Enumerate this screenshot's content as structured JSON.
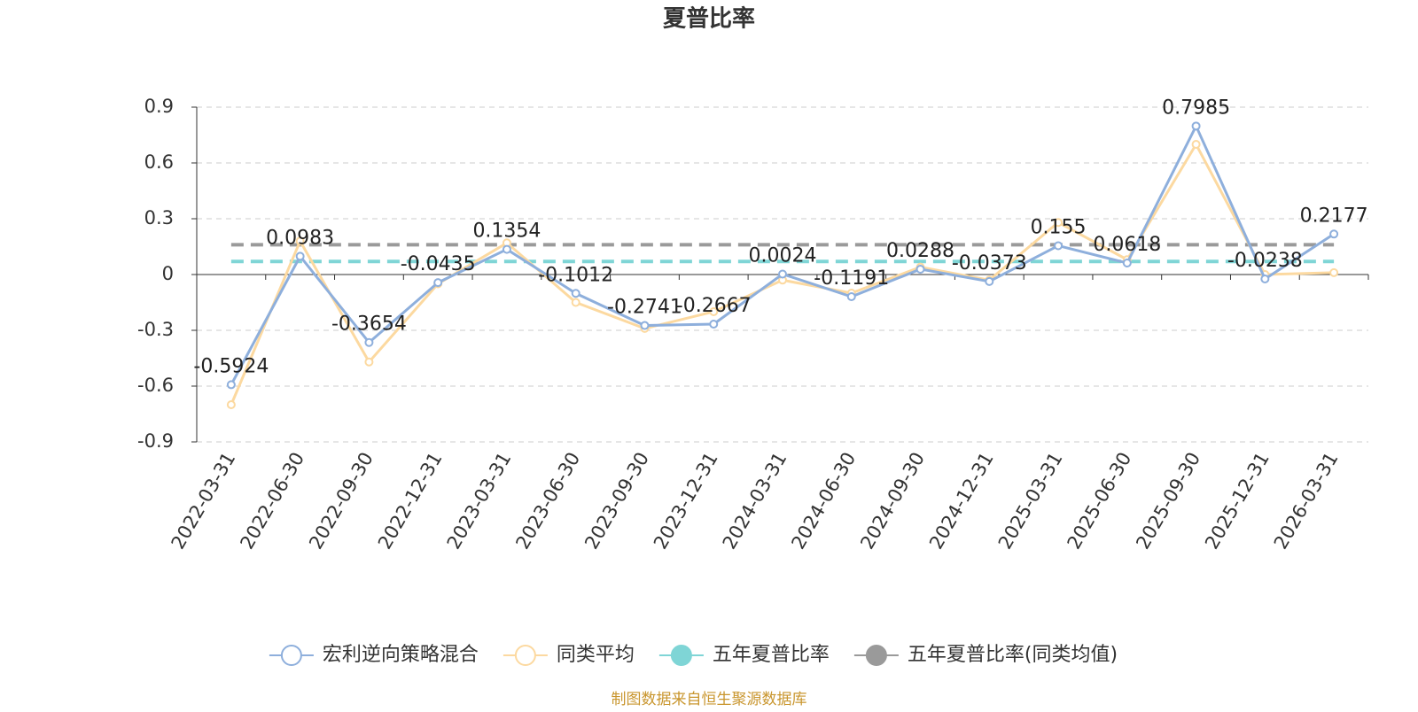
{
  "chart_data": {
    "type": "line",
    "title": "夏普比率",
    "footer": "制图数据来自恒生聚源数据库",
    "categories": [
      "2022-03-31",
      "2022-06-30",
      "2022-09-30",
      "2022-12-31",
      "2023-03-31",
      "2023-06-30",
      "2023-09-30",
      "2023-12-31",
      "2024-03-31",
      "2024-06-30",
      "2024-09-30",
      "2024-12-31",
      "2025-03-31",
      "2025-06-30",
      "2025-09-30",
      "2025-12-31",
      "2026-03-31"
    ],
    "series": [
      {
        "name": "宏利逆向策略混合",
        "color": "#8eafdc",
        "labels": true,
        "values": [
          -0.5924,
          0.0983,
          -0.3654,
          -0.0435,
          0.1354,
          -0.1012,
          -0.2741,
          -0.2667,
          0.0024,
          -0.1191,
          0.0288,
          -0.0373,
          0.155,
          0.0618,
          0.7985,
          -0.0238,
          0.2177
        ]
      },
      {
        "name": "同类平均",
        "color": "#fcd9a0",
        "labels": false,
        "values": [
          -0.7,
          0.18,
          -0.47,
          -0.05,
          0.17,
          -0.15,
          -0.29,
          -0.2,
          -0.03,
          -0.1,
          0.04,
          -0.03,
          0.28,
          0.08,
          0.7,
          0.0,
          0.01
        ]
      }
    ],
    "reference_lines": [
      {
        "name": "五年夏普比率",
        "color": "#7fd5d6",
        "value": 0.07
      },
      {
        "name": "五年夏普比率(同类均值)",
        "color": "#9a9a9a",
        "value": 0.16
      }
    ],
    "ylim": [
      -0.9,
      0.9
    ],
    "yticks": [
      -0.9,
      -0.6,
      -0.3,
      0,
      0.3,
      0.6,
      0.9
    ],
    "grid": true
  }
}
